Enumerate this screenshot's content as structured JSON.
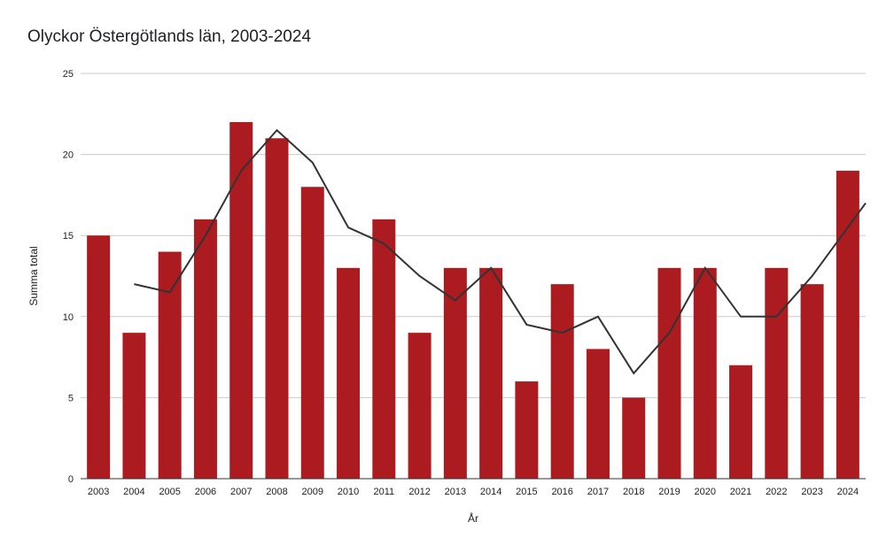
{
  "chart_data": {
    "type": "bar",
    "title": "Olyckor Östergötlands län, 2003-2024",
    "xlabel": "År",
    "ylabel": "Summa total",
    "ylim": [
      0,
      25
    ],
    "yticks": [
      0,
      5,
      10,
      15,
      20,
      25
    ],
    "grid": true,
    "legend": "none",
    "categories": [
      "2003",
      "2004",
      "2005",
      "2006",
      "2007",
      "2008",
      "2009",
      "2010",
      "2011",
      "2012",
      "2013",
      "2014",
      "2015",
      "2016",
      "2017",
      "2018",
      "2019",
      "2020",
      "2021",
      "2022",
      "2023",
      "2024"
    ],
    "series": [
      {
        "type": "bar",
        "color": "#ac1b1f",
        "values": [
          15,
          9,
          14,
          16,
          22,
          21,
          18,
          13,
          16,
          9,
          13,
          13,
          6,
          12,
          8,
          5,
          13,
          13,
          7,
          13,
          12,
          19
        ]
      },
      {
        "type": "line",
        "color": "#333333",
        "values": [
          null,
          12,
          11.5,
          15,
          19,
          21.5,
          19.5,
          15.5,
          14.5,
          12.5,
          11,
          13,
          9.5,
          9,
          10,
          6.5,
          9,
          13,
          10,
          10,
          12.5,
          15.5
        ]
      }
    ]
  }
}
